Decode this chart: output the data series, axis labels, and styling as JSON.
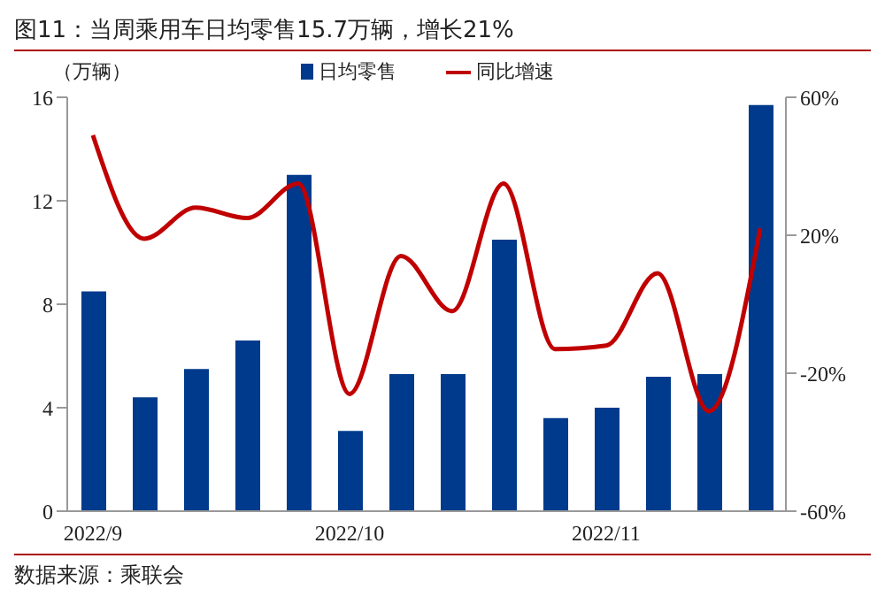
{
  "chart_data": {
    "type": "bar",
    "title": "图11：当周乘用车日均零售15.7万辆，增长21%",
    "ylabel": "（万辆）",
    "annotations": [
      "数据来源：乘联会"
    ],
    "categories": [
      "2022/9",
      null,
      null,
      null,
      null,
      "2022/10",
      null,
      null,
      null,
      null,
      "2022/11",
      null,
      null,
      null
    ],
    "series": [
      {
        "name": "日均零售",
        "color": "#003a8c",
        "values": [
          8.5,
          4.4,
          5.5,
          6.6,
          13.0,
          3.1,
          5.3,
          5.3,
          10.5,
          3.6,
          4.0,
          5.2,
          5.3,
          15.7
        ]
      },
      {
        "name": "同比增速",
        "type": "line",
        "axis": "y2",
        "color": "#c00000",
        "values": [
          49,
          19,
          28,
          25,
          35,
          -26,
          14,
          -2,
          35,
          -13,
          -12,
          9,
          -31,
          22
        ]
      }
    ],
    "ylim": [
      0,
      16
    ],
    "yticks": [
      0,
      4,
      8,
      12,
      16
    ],
    "y2lim": [
      -60,
      60
    ],
    "y2ticks": [
      {
        "value": -60,
        "label": "-60%"
      },
      {
        "value": -20,
        "label": "-20%"
      },
      {
        "value": 20,
        "label": "20%"
      },
      {
        "value": 60,
        "label": "60%"
      }
    ],
    "grid": false,
    "legend": "top",
    "marker": "none",
    "line_style": "solid"
  }
}
